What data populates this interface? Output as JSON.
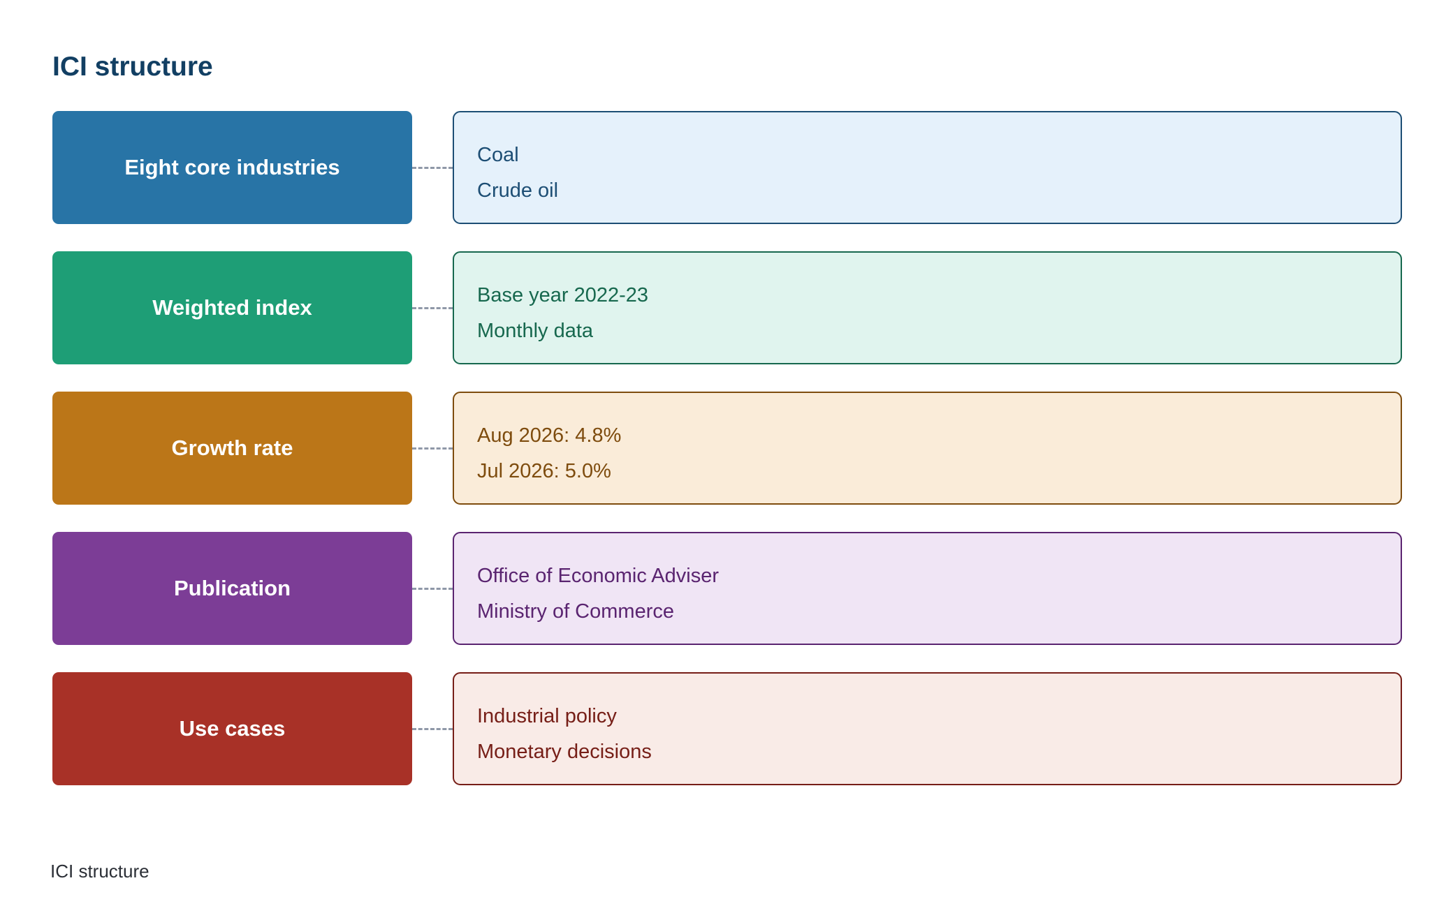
{
  "title": "ICI structure",
  "rows": [
    {
      "label": "Eight core industries",
      "details": [
        "Coal",
        "Crude oil"
      ],
      "label_color": "#2874a6",
      "detail_fill": "#e5f1fb",
      "detail_color": "#1d4e74"
    },
    {
      "label": "Weighted index",
      "details": [
        "Base year 2022-23",
        "Monthly data"
      ],
      "label_color": "#1e9e76",
      "detail_fill": "#e0f4ee",
      "detail_color": "#17684e"
    },
    {
      "label": "Growth rate",
      "details": [
        "Aug 2026: 4.8%",
        "Jul 2026: 5.0%"
      ],
      "label_color": "#bb7618",
      "detail_fill": "#faecd9",
      "detail_color": "#7e4c0e"
    },
    {
      "label": "Publication",
      "details": [
        "Office of Economic Adviser",
        "Ministry of Commerce"
      ],
      "label_color": "#7c3d96",
      "detail_fill": "#f0e5f5",
      "detail_color": "#5a2470"
    },
    {
      "label": "Use cases",
      "details": [
        "Industrial policy",
        "Monetary decisions"
      ],
      "label_color": "#a83127",
      "detail_fill": "#f9ebe7",
      "detail_color": "#761e17"
    }
  ],
  "caption": "ICI structure"
}
